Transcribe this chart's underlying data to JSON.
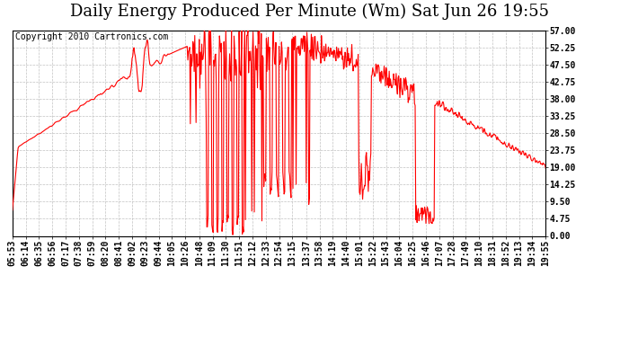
{
  "title": "Daily Energy Produced Per Minute (Wm) Sat Jun 26 19:55",
  "copyright": "Copyright 2010 Cartronics.com",
  "line_color": "#FF0000",
  "bg_color": "#FFFFFF",
  "plot_bg_color": "#FFFFFF",
  "grid_color": "#BBBBBB",
  "ylim": [
    0,
    57.0
  ],
  "yticks": [
    0.0,
    4.75,
    9.5,
    14.25,
    19.0,
    23.75,
    28.5,
    33.25,
    38.0,
    42.75,
    47.5,
    52.25,
    57.0
  ],
  "ytick_labels": [
    "0.00",
    "4.75",
    "9.50",
    "14.25",
    "19.00",
    "23.75",
    "28.50",
    "33.25",
    "38.00",
    "42.75",
    "47.50",
    "52.25",
    "57.00"
  ],
  "title_fontsize": 13,
  "copyright_fontsize": 7,
  "tick_fontsize": 7,
  "x_tick_labels": [
    "05:53",
    "06:14",
    "06:35",
    "06:56",
    "07:17",
    "07:38",
    "07:59",
    "08:20",
    "08:41",
    "09:02",
    "09:23",
    "09:44",
    "10:05",
    "10:26",
    "10:48",
    "11:09",
    "11:30",
    "11:51",
    "12:12",
    "12:33",
    "12:54",
    "13:15",
    "13:37",
    "13:58",
    "14:19",
    "14:40",
    "15:01",
    "15:22",
    "15:43",
    "16:04",
    "16:25",
    "16:46",
    "17:07",
    "17:28",
    "17:49",
    "18:10",
    "18:31",
    "18:52",
    "19:13",
    "19:34",
    "19:55"
  ]
}
